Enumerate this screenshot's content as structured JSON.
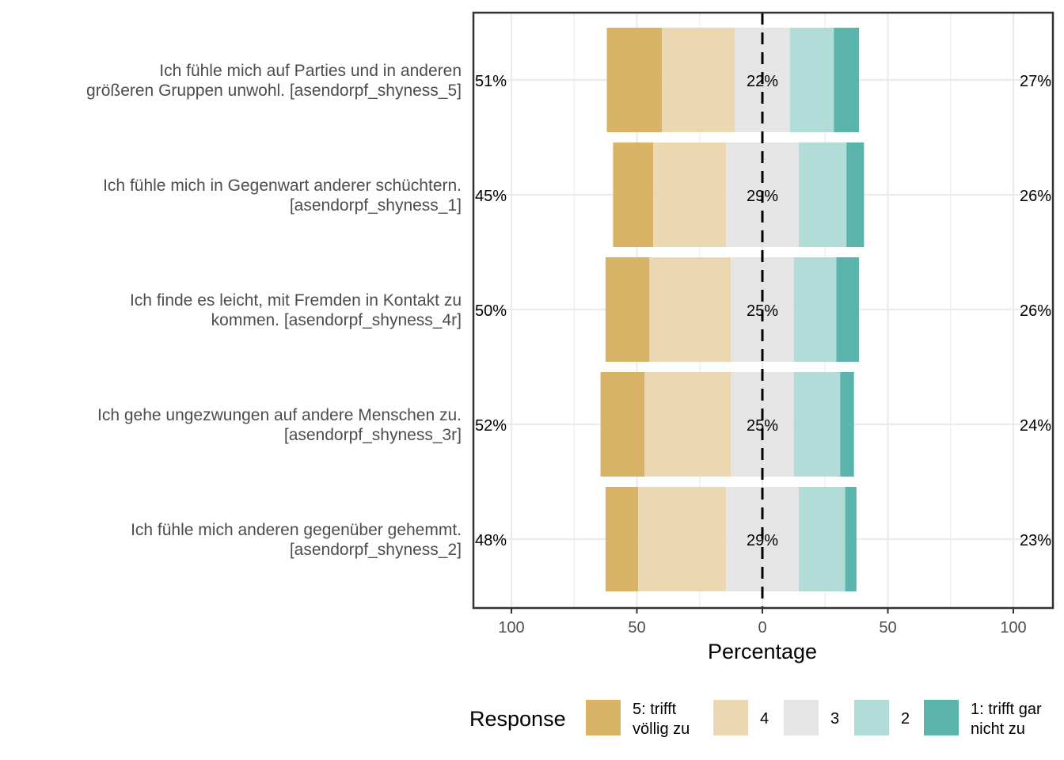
{
  "chart_data": {
    "type": "bar",
    "subtype": "diverging-stacked-likert",
    "xlabel": "Percentage",
    "x_ticks": [
      100,
      50,
      0,
      50,
      100
    ],
    "xlim": [
      -100,
      100
    ],
    "grid": true,
    "legend": {
      "title": "Response",
      "placement": "bottom",
      "entries": [
        {
          "label_lines": [
            "5: trifft",
            "völlig zu"
          ],
          "color": "#d8b365"
        },
        {
          "label_lines": [
            "4"
          ],
          "color": "#ebd8b2"
        },
        {
          "label_lines": [
            "3"
          ],
          "color": "#e5e5e5"
        },
        {
          "label_lines": [
            "2"
          ],
          "color": "#b2dcd7"
        },
        {
          "label_lines": [
            "1: trifft gar",
            "nicht zu"
          ],
          "color": "#5ab4ac"
        }
      ]
    },
    "categories": [
      {
        "label_lines": [
          "Ich fühle mich auf Parties und in anderen",
          "größeren Gruppen unwohl. [asendorpf_shyness_5]"
        ],
        "left_label": "51%",
        "center_label": "22%",
        "right_label": "27%",
        "values": [
          22,
          29,
          22,
          17.5,
          10
        ]
      },
      {
        "label_lines": [
          "Ich fühle mich in Gegenwart anderer schüchtern.",
          "[asendorpf_shyness_1]"
        ],
        "left_label": "45%",
        "center_label": "29%",
        "right_label": "26%",
        "values": [
          16,
          29,
          29,
          19,
          7
        ]
      },
      {
        "label_lines": [
          "Ich finde es leicht, mit Fremden in Kontakt zu",
          "kommen. [asendorpf_shyness_4r]"
        ],
        "left_label": "50%",
        "center_label": "25%",
        "right_label": "26%",
        "values": [
          17.5,
          32.5,
          25,
          17,
          9
        ]
      },
      {
        "label_lines": [
          "Ich gehe ungezwungen auf andere Menschen zu.",
          "[asendorpf_shyness_3r]"
        ],
        "left_label": "52%",
        "center_label": "25%",
        "right_label": "24%",
        "values": [
          17.5,
          34.5,
          25,
          18.5,
          5.5
        ]
      },
      {
        "label_lines": [
          "Ich fühle mich anderen gegenüber gehemmt.",
          "[asendorpf_shyness_2]"
        ],
        "left_label": "48%",
        "center_label": "29%",
        "right_label": "23%",
        "values": [
          13,
          35,
          29,
          18.5,
          4.5
        ]
      }
    ]
  }
}
